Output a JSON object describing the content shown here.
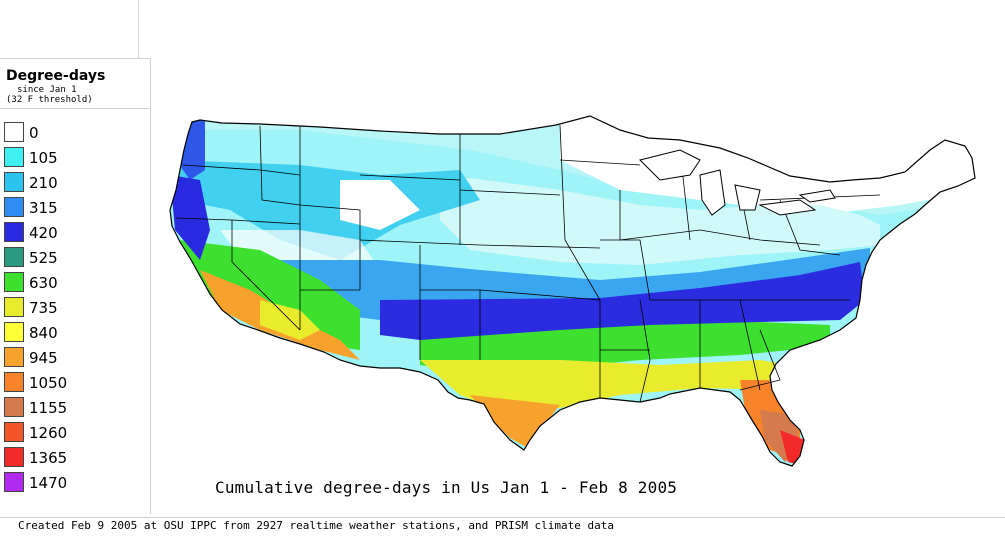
{
  "legend": {
    "title": "Degree-days",
    "subtitle_line1": "since Jan 1",
    "subtitle_line2": "(32 F threshold)",
    "items": [
      {
        "label": "0",
        "color": "#ffffff"
      },
      {
        "label": "105",
        "color": "#3ef0f0"
      },
      {
        "label": "210",
        "color": "#2cc3ee"
      },
      {
        "label": "315",
        "color": "#2f8cf0"
      },
      {
        "label": "420",
        "color": "#2a2ae0"
      },
      {
        "label": "525",
        "color": "#2a9a80"
      },
      {
        "label": "630",
        "color": "#3ee030"
      },
      {
        "label": "735",
        "color": "#e8ec2c"
      },
      {
        "label": "840",
        "color": "#ffff3a"
      },
      {
        "label": "945",
        "color": "#f7a22c"
      },
      {
        "label": "1050",
        "color": "#f7832a"
      },
      {
        "label": "1155",
        "color": "#d47a4c"
      },
      {
        "label": "1260",
        "color": "#f2552a"
      },
      {
        "label": "1365",
        "color": "#f22a2a"
      },
      {
        "label": "1470",
        "color": "#b02af0"
      }
    ]
  },
  "map_title": "Cumulative degree-days in Us Jan 1 - Feb 8 2005",
  "footer": "Created Feb 9 2005 at OSU IPPC from 2927 realtime weather stations, and PRISM climate data"
}
